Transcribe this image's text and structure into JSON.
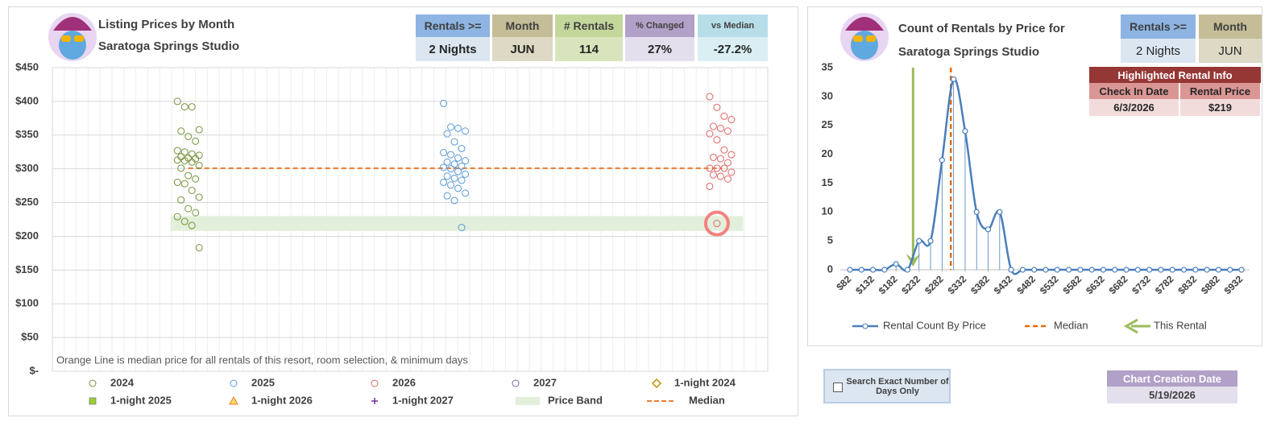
{
  "left_panel": {
    "info": [
      {
        "label": "Rentals >=",
        "value": "2 Nights"
      },
      {
        "label": "Month",
        "value": "JUN"
      },
      {
        "label": "# Rentals",
        "value": "114"
      },
      {
        "label": "% Changed",
        "value": "27%"
      },
      {
        "label": "vs Median",
        "value": "-27.2%"
      }
    ]
  },
  "right_panel": {
    "info": [
      {
        "label": "Rentals >=",
        "value": "2 Nights"
      },
      {
        "label": "Month",
        "value": "JUN"
      }
    ],
    "highlighted_rental": {
      "title": "Highlighted Rental Info",
      "headers": [
        "Check In Date",
        "Rental Price"
      ],
      "values": [
        "6/3/2026",
        "$219"
      ]
    }
  },
  "checkbox_label": "Search Exact Number of Days Only",
  "creation": {
    "label": "Chart Creation Date",
    "value": "5/19/2026"
  },
  "chart_data": [
    {
      "type": "scatter",
      "title": "Listing Prices by Month",
      "subtitle": "Saratoga Springs Studio",
      "annotation": "Orange Line is median price for all rentals of this resort, room selection, & minimum days",
      "ylim": [
        0,
        450
      ],
      "yticks": [
        {
          "value": 0,
          "label": "$-"
        },
        {
          "value": 50,
          "label": "$50"
        },
        {
          "value": 100,
          "label": "$100"
        },
        {
          "value": 150,
          "label": "$150"
        },
        {
          "value": 200,
          "label": "$200"
        },
        {
          "value": 250,
          "label": "$250"
        },
        {
          "value": 300,
          "label": "$300"
        },
        {
          "value": 350,
          "label": "$350"
        },
        {
          "value": 400,
          "label": "$400"
        },
        {
          "value": 450,
          "label": "$450"
        }
      ],
      "grid": true,
      "series": [
        {
          "name": "2024",
          "color": "#77933c",
          "marker": "circle",
          "values": [
            400,
            392,
            392,
            358,
            356,
            348,
            341,
            327,
            325,
            322,
            320,
            318,
            316,
            315,
            313,
            312,
            310,
            305,
            301,
            290,
            285,
            280,
            278,
            268,
            258,
            254,
            241,
            235,
            229,
            222,
            216,
            183
          ]
        },
        {
          "name": "2025",
          "color": "#5b9bd5",
          "marker": "circle",
          "values": [
            397,
            362,
            360,
            356,
            352,
            340,
            330,
            324,
            321,
            316,
            312,
            310,
            307,
            304,
            302,
            300,
            296,
            292,
            289,
            286,
            283,
            280,
            276,
            271,
            264,
            260,
            253,
            213
          ]
        },
        {
          "name": "2026",
          "color": "#e06666",
          "marker": "circle",
          "highlighted_index": 22,
          "values": [
            407,
            391,
            378,
            373,
            363,
            360,
            356,
            352,
            343,
            328,
            321,
            317,
            315,
            309,
            301,
            301,
            301,
            295,
            291,
            289,
            285,
            274,
            219
          ]
        },
        {
          "name": "2027",
          "color": "#8064a2",
          "marker": "circle",
          "values": []
        },
        {
          "name": "1-night 2024",
          "color": "#bf9000",
          "marker": "diamond",
          "values": []
        },
        {
          "name": "1-night 2025",
          "color": "#9acd32",
          "marker": "square",
          "values": []
        },
        {
          "name": "1-night 2026",
          "color": "#ed7d31",
          "marker": "triangle",
          "values": []
        },
        {
          "name": "1-night 2027",
          "color": "#7030a0",
          "marker": "plus",
          "values": []
        }
      ],
      "price_band": {
        "name": "Price Band",
        "color": "#e2efda",
        "range": [
          208,
          230
        ]
      },
      "median": {
        "name": "Median",
        "color": "#ed7d31",
        "value": 301
      }
    },
    {
      "type": "line",
      "title": "Count of Rentals by Price for",
      "subtitle": "Saratoga Springs Studio",
      "x": [
        82,
        107,
        132,
        157,
        182,
        207,
        232,
        257,
        282,
        307,
        332,
        357,
        382,
        407,
        432,
        457,
        482,
        507,
        532,
        557,
        582,
        607,
        632,
        657,
        682,
        707,
        732,
        757,
        782,
        807,
        832,
        857,
        882,
        907,
        932
      ],
      "xlim": [
        82,
        932
      ],
      "xticks": [
        {
          "value": 82,
          "label": "$82"
        },
        {
          "value": 132,
          "label": "$132"
        },
        {
          "value": 182,
          "label": "$182"
        },
        {
          "value": 232,
          "label": "$232"
        },
        {
          "value": 282,
          "label": "$282"
        },
        {
          "value": 332,
          "label": "$332"
        },
        {
          "value": 382,
          "label": "$382"
        },
        {
          "value": 432,
          "label": "$432"
        },
        {
          "value": 482,
          "label": "$482"
        },
        {
          "value": 532,
          "label": "$532"
        },
        {
          "value": 582,
          "label": "$582"
        },
        {
          "value": 632,
          "label": "$632"
        },
        {
          "value": 682,
          "label": "$682"
        },
        {
          "value": 732,
          "label": "$732"
        },
        {
          "value": 782,
          "label": "$782"
        },
        {
          "value": 832,
          "label": "$832"
        },
        {
          "value": 882,
          "label": "$882"
        },
        {
          "value": 932,
          "label": "$932"
        }
      ],
      "ylim": [
        0,
        35
      ],
      "yticks": [
        0,
        5,
        10,
        15,
        20,
        25,
        30,
        35
      ],
      "grid": false,
      "drop_lines": true,
      "series": [
        {
          "name": "Rental Count By Price",
          "color": "#4a7ebb",
          "values": [
            0,
            0,
            0,
            0,
            1,
            0,
            5,
            5,
            19,
            33,
            24,
            10,
            7,
            10,
            0,
            0,
            0,
            0,
            0,
            0,
            0,
            0,
            0,
            0,
            0,
            0,
            0,
            0,
            0,
            0,
            0,
            0,
            0,
            0,
            0
          ]
        }
      ],
      "median": {
        "name": "Median",
        "color": "#e36c09",
        "value": 301
      },
      "this_rental": {
        "name": "This Rental",
        "color": "#9bbb59",
        "value": 219
      }
    }
  ]
}
